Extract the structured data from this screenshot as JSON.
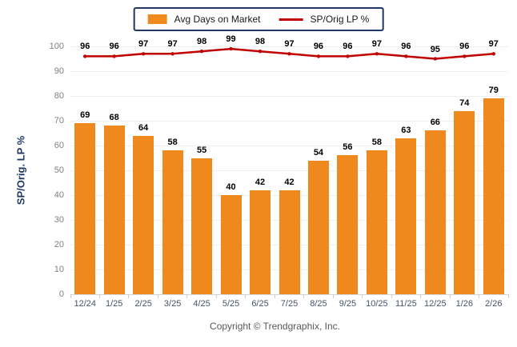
{
  "legend": {
    "bar_label": "Avg Days on Market",
    "line_label": "SP/Orig LP %"
  },
  "y_axis_title": "SP/Orig. LP %",
  "footer": "Copyright © Trendgraphix, Inc.",
  "colors": {
    "bar": "#F0891D",
    "line": "#C00000",
    "navy": "#1F3864",
    "grid": "#EFEFEF",
    "baseline": "#D6D6D6",
    "y_tick_text": "#7F7F7F",
    "x_tick_text": "#44546A",
    "value_label_text": "#000000",
    "footer_text": "#595959"
  },
  "chart_data": {
    "type": "bar+line",
    "title": "",
    "xlabel": "",
    "ylabel": "SP/Orig. LP %",
    "categories": [
      "12/24",
      "1/25",
      "2/25",
      "3/25",
      "4/25",
      "5/25",
      "6/25",
      "7/25",
      "8/25",
      "9/25",
      "10/25",
      "11/25",
      "12/25",
      "1/26",
      "2/26"
    ],
    "series": [
      {
        "name": "Avg Days on Market",
        "type": "bar",
        "values": [
          69,
          68,
          64,
          58,
          55,
          40,
          42,
          42,
          54,
          56,
          58,
          63,
          66,
          74,
          79
        ]
      },
      {
        "name": "SP/Orig LP %",
        "type": "line",
        "values": [
          96,
          96,
          97,
          97,
          98,
          99,
          98,
          97,
          96,
          96,
          97,
          96,
          95,
          96,
          97
        ]
      }
    ],
    "ylim": [
      0,
      100
    ],
    "y_ticks": [
      0,
      10,
      20,
      30,
      40,
      50,
      60,
      70,
      80,
      90,
      100
    ],
    "grid": true,
    "legend_position": "top",
    "data_labels": true
  }
}
